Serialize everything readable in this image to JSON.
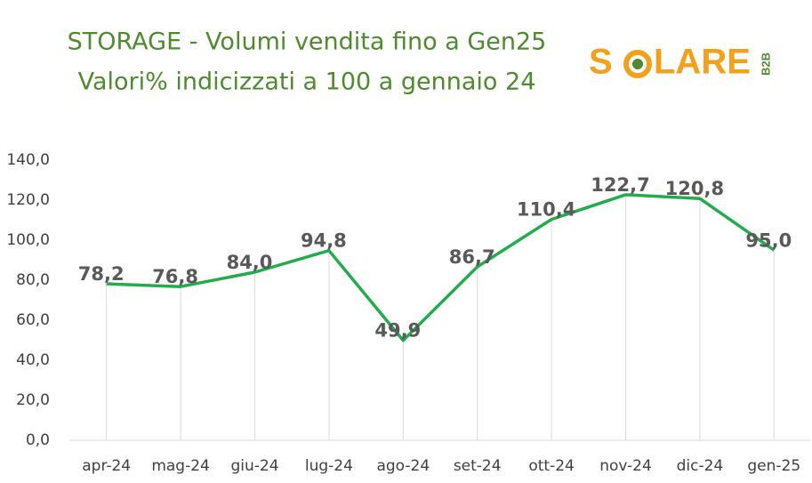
{
  "chart_data": {
    "type": "line",
    "title": "STORAGE - Volumi vendita fino a Gen25",
    "subtitle": "Valori% indicizzati a 100 a gennaio 24",
    "categories": [
      "apr-24",
      "mag-24",
      "giu-24",
      "lug-24",
      "ago-24",
      "set-24",
      "ott-24",
      "nov-24",
      "dic-24",
      "gen-25"
    ],
    "series": [
      {
        "color": "#22ac4b",
        "values": [
          78.2,
          76.8,
          84.0,
          94.8,
          49.9,
          86.7,
          110.4,
          122.7,
          120.8,
          95.0
        ],
        "value_labels": [
          "78,2",
          "76,8",
          "84,0",
          "94,8",
          "49,9",
          "86,7",
          "110,4",
          "122,7",
          "120,8",
          "95,0"
        ]
      }
    ],
    "ylim": [
      0,
      140
    ],
    "yticks": [
      {
        "value": 0,
        "label": "0,0"
      },
      {
        "value": 20,
        "label": "20,0"
      },
      {
        "value": 40,
        "label": "40,0"
      },
      {
        "value": 60,
        "label": "60,0"
      },
      {
        "value": 80,
        "label": "80,0"
      },
      {
        "value": 100,
        "label": "100,0"
      },
      {
        "value": 120,
        "label": "120,0"
      },
      {
        "value": 140,
        "label": "140,0"
      }
    ],
    "grid": false
  },
  "logo": {
    "left": "S",
    "right": "LARE",
    "badge": "B2B"
  }
}
